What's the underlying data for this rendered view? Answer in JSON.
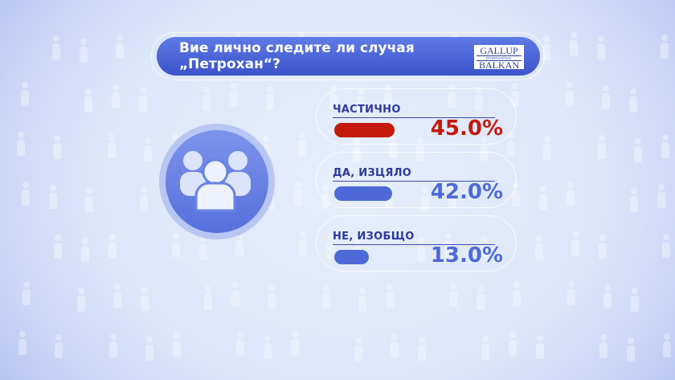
{
  "title": {
    "line1": "Вие лично следите ли случая",
    "line2": "„Петрохан“?"
  },
  "logo": {
    "top": "GALLUP",
    "middle": "INTERNATIONAL",
    "bottom": "BALKAN"
  },
  "icon": "people-group-icon",
  "chart_data": {
    "type": "bar",
    "title": "Вие лично следите ли случая „Петрохан“?",
    "categories": [
      "ЧАСТИЧНО",
      "ДА, ИЗЦЯЛО",
      "НЕ, ИЗОБЩО"
    ],
    "values": [
      45.0,
      42.0,
      13.0
    ],
    "labels": [
      "45.0%",
      "42.0%",
      "13.0%"
    ],
    "colors": [
      "#c41a0c",
      "#4d6ad8",
      "#4d6ad8"
    ],
    "unit": "%"
  }
}
